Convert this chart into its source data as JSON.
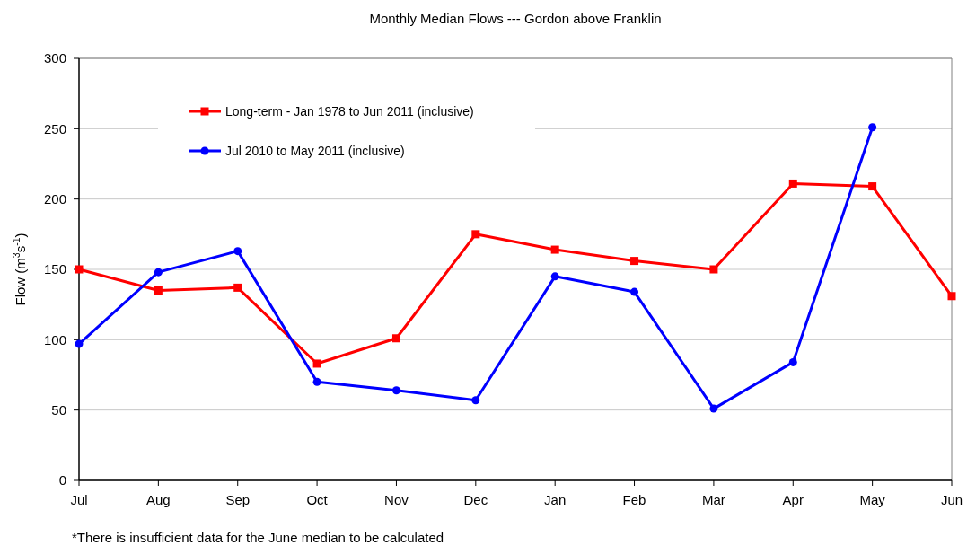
{
  "chart_data": {
    "type": "line",
    "title": "Monthly Median Flows --- Gordon above Franklin",
    "ylabel": "Flow (m$^{3}$s$^{-1}$)",
    "categories": [
      "Jul",
      "Aug",
      "Sep",
      "Oct",
      "Nov",
      "Dec",
      "Jan",
      "Feb",
      "Mar",
      "Apr",
      "May",
      "Jun"
    ],
    "series": [
      {
        "name": "Long-term - Jan 1978 to Jun 2011 (inclusive)",
        "color": "#ff0000",
        "marker": "square",
        "values": [
          150,
          135,
          137,
          83,
          101,
          175,
          164,
          156,
          150,
          211,
          209,
          131
        ]
      },
      {
        "name": "Jul 2010 to May 2011 (inclusive)",
        "color": "#0000ff",
        "marker": "circle",
        "values": [
          97,
          148,
          163,
          70,
          64,
          57,
          145,
          134,
          51,
          84,
          251,
          null
        ]
      }
    ],
    "ylim": [
      0,
      300
    ],
    "yticks": [
      0,
      50,
      100,
      150,
      200,
      250,
      300
    ],
    "grid": "y",
    "legend": "top left",
    "annotations": [
      "*There is insufficient data for the June median to be calculated"
    ]
  }
}
